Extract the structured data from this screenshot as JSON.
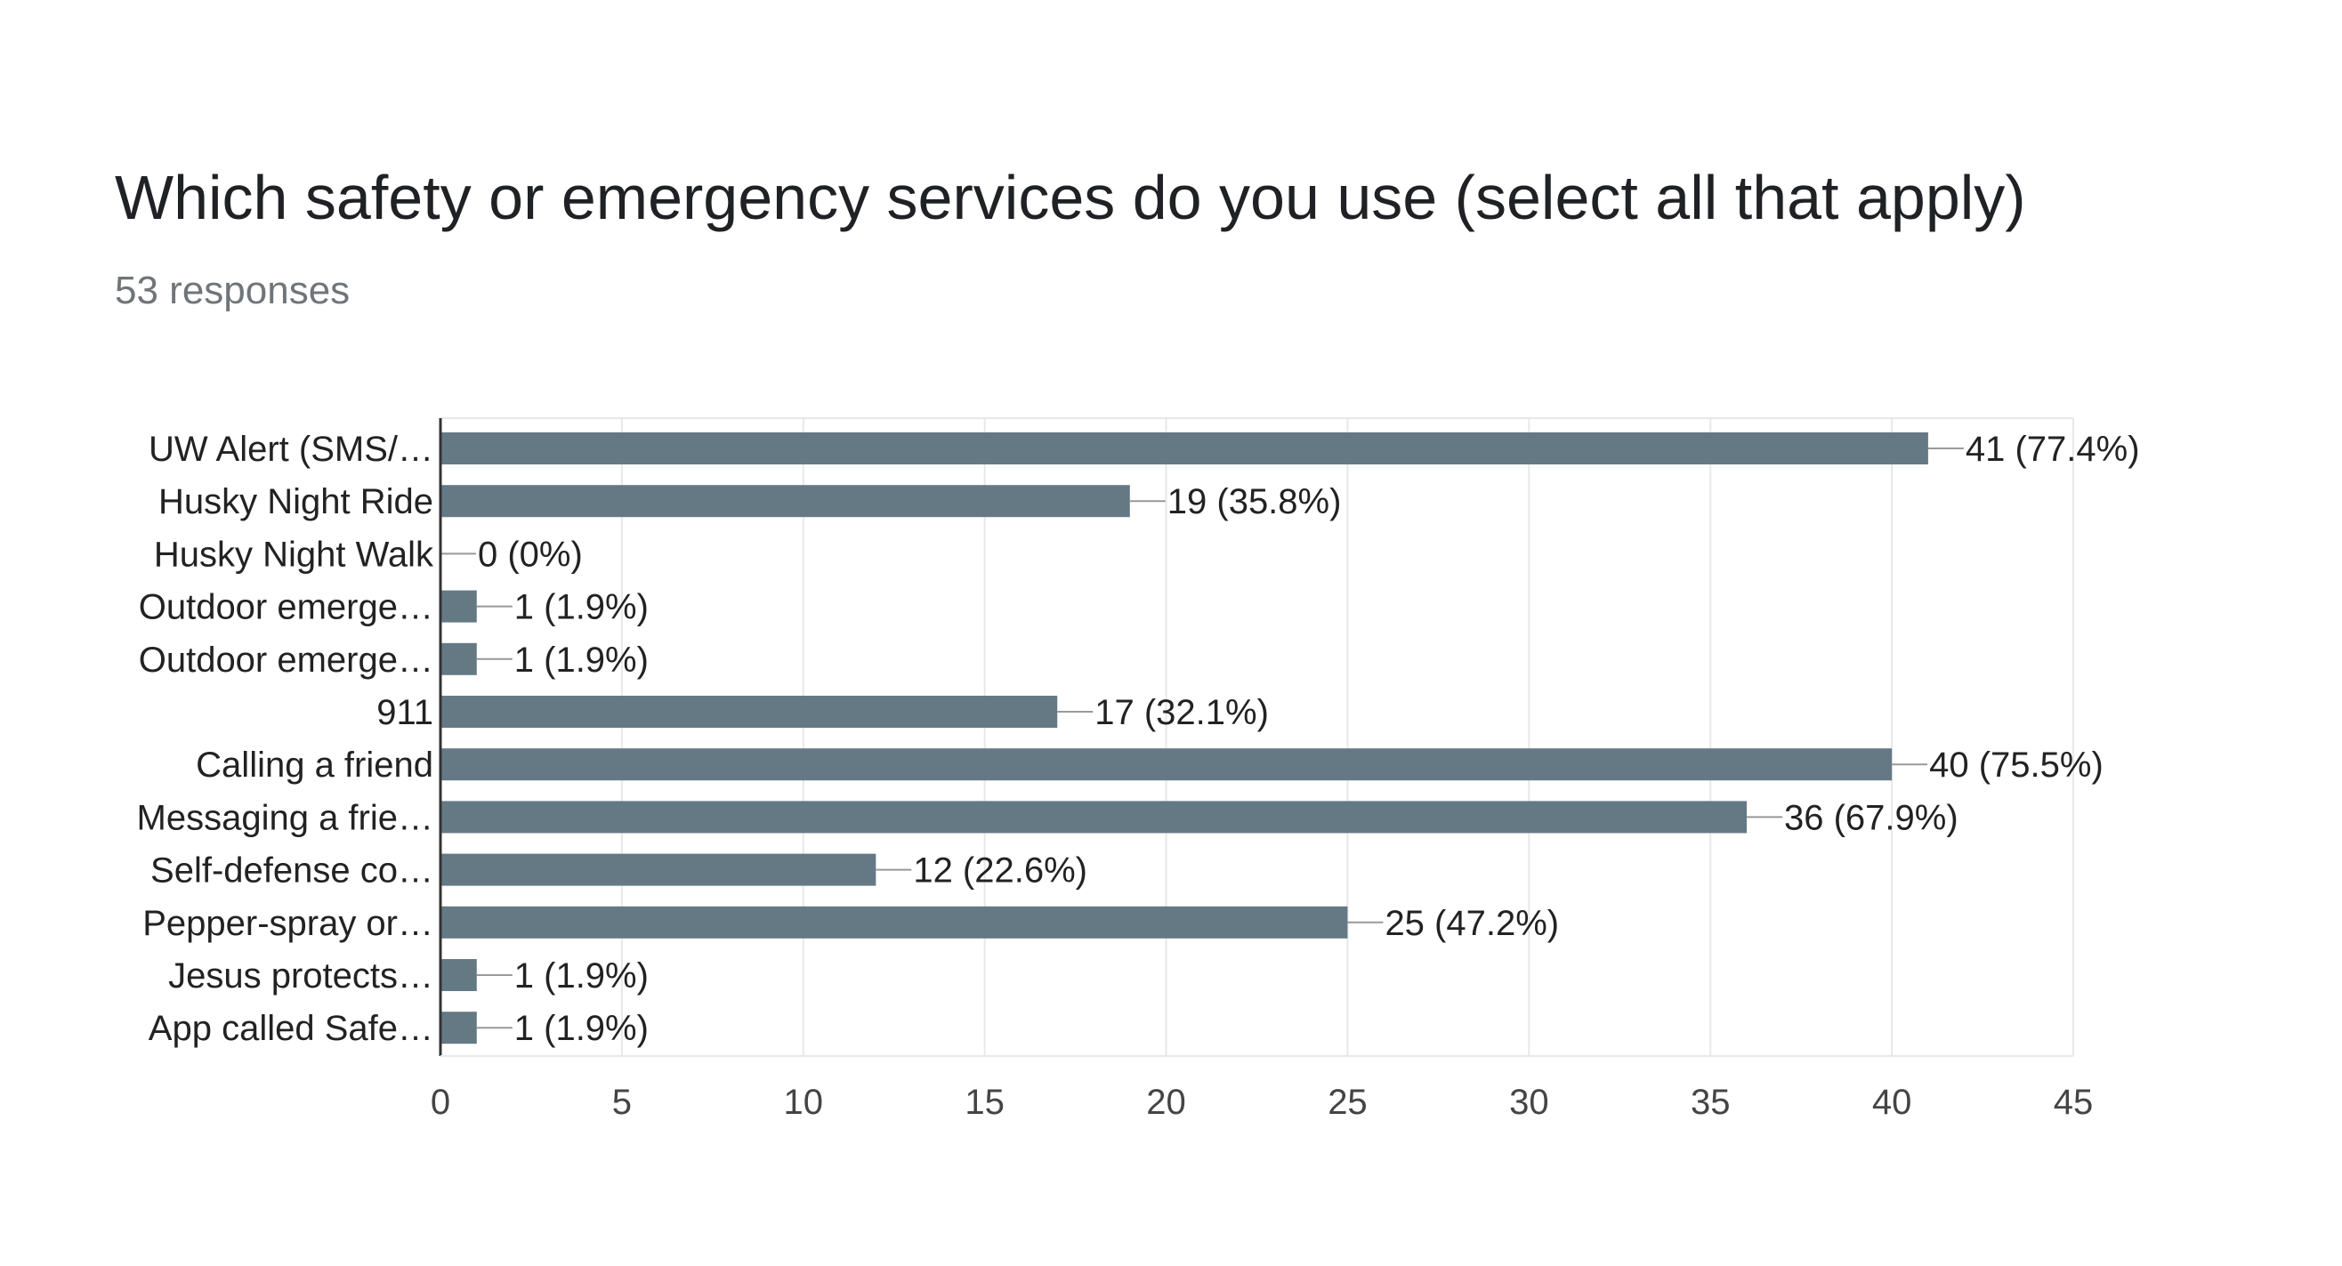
{
  "header": {
    "title": "Which safety or emergency services do you use (select all that apply)",
    "subtitle": "53 responses"
  },
  "colors": {
    "bar": "#657985",
    "grid": "#e8e8e8",
    "axis": "#333333",
    "label": "#222222",
    "tick": "#444444"
  },
  "chart_data": {
    "type": "bar",
    "orientation": "horizontal",
    "categories": [
      "UW Alert (SMS/…",
      "Husky Night Ride",
      "Husky Night Walk",
      "Outdoor emerge…",
      "Outdoor emerge…",
      "911",
      "Calling a friend",
      "Messaging a frie…",
      "Self-defense co…",
      "Pepper-spray or…",
      "Jesus protects…",
      "App called Safe…"
    ],
    "values": [
      41,
      19,
      0,
      1,
      1,
      17,
      40,
      36,
      12,
      25,
      1,
      1
    ],
    "data_labels": [
      "41 (77.4%)",
      "19 (35.8%)",
      "0 (0%)",
      "1 (1.9%)",
      "1 (1.9%)",
      "17 (32.1%)",
      "40 (75.5%)",
      "36 (67.9%)",
      "12 (22.6%)",
      "25 (47.2%)",
      "1 (1.9%)",
      "1 (1.9%)"
    ],
    "xlim": [
      0,
      45
    ],
    "xticks": [
      "0",
      "5",
      "10",
      "15",
      "20",
      "25",
      "30",
      "35",
      "40",
      "45"
    ],
    "grid": true,
    "legend": "none"
  }
}
